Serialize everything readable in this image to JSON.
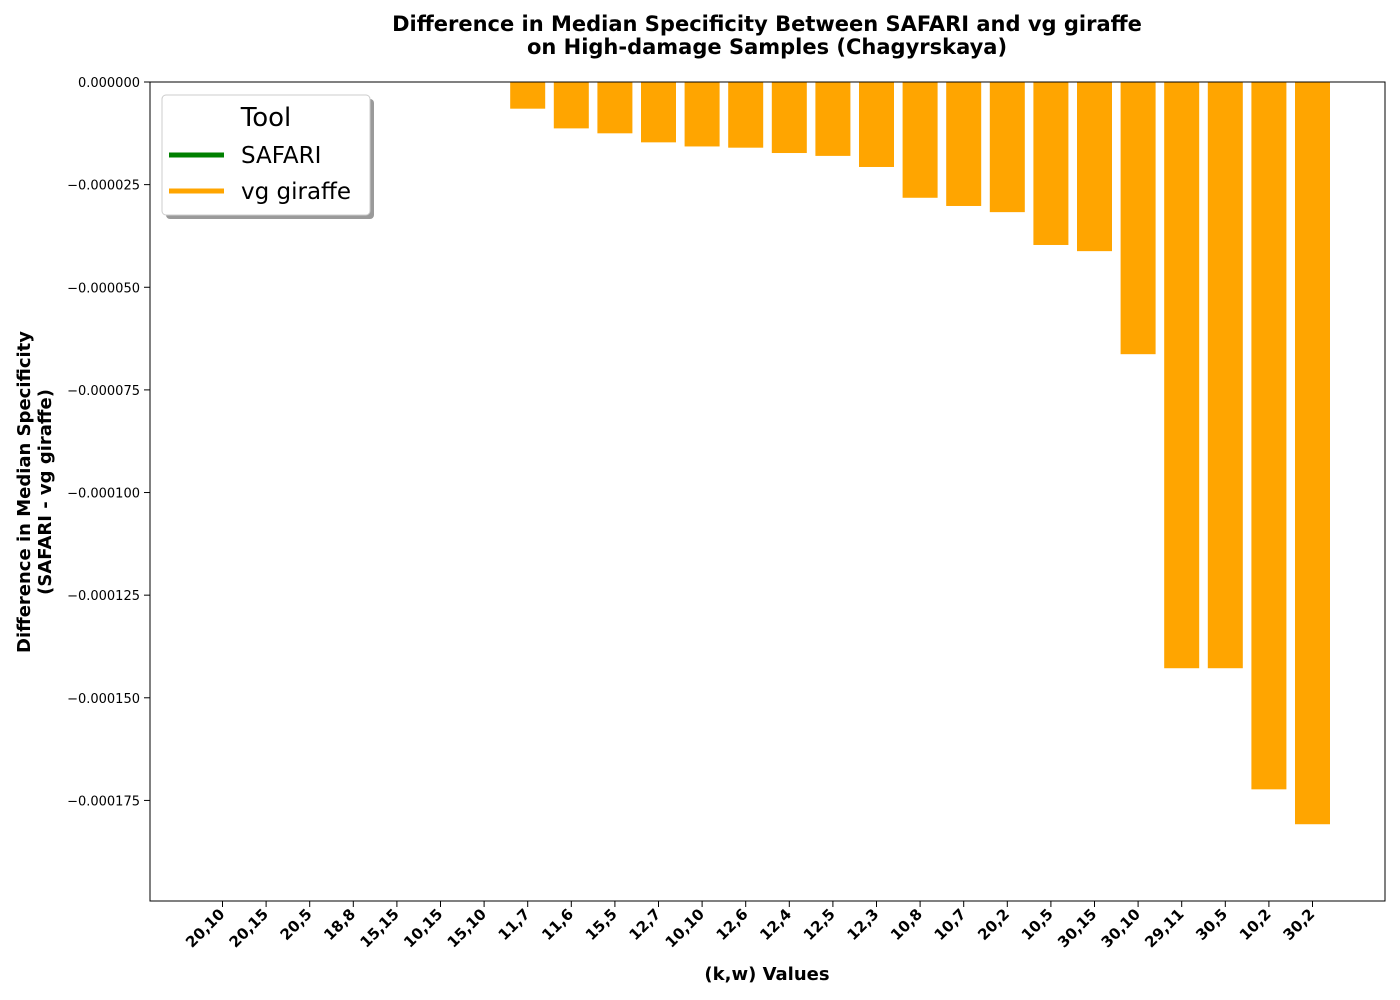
{
  "chart_data": {
    "type": "bar",
    "title": "Difference in Median Specificity Between SAFARI and vg giraffe",
    "subtitle": "on High-damage Samples (Chagyrskaya)",
    "xlabel": "(k,w) Values",
    "ylabel": "Difference in Median Specificity",
    "ylabel_sub": "(SAFARI - vg giraffe)",
    "categories": [
      "20,10",
      "20,15",
      "20,5",
      "18,8",
      "15,15",
      "10,15",
      "15,10",
      "11,7",
      "11,6",
      "15,5",
      "12,7",
      "10,10",
      "12,6",
      "12,4",
      "12,5",
      "12,3",
      "10,8",
      "10,7",
      "20,2",
      "10,5",
      "30,15",
      "30,10",
      "29,11",
      "30,5",
      "10,2",
      "30,2"
    ],
    "values": [
      0,
      0,
      0,
      0,
      0,
      0,
      0,
      -6.5e-06,
      -1.13e-05,
      -1.25e-05,
      -1.47e-05,
      -1.57e-05,
      -1.6e-05,
      -1.73e-05,
      -1.8e-05,
      -2.07e-05,
      -2.82e-05,
      -3.02e-05,
      -3.17e-05,
      -3.97e-05,
      -4.12e-05,
      -6.63e-05,
      -0.0001428,
      -0.0001428,
      -0.0001723,
      -0.0001808
    ],
    "bar_color": "#ffa500",
    "ylim": [
      -0.0001995,
      0
    ],
    "yticks": [
      0,
      -2.5e-05,
      -5e-05,
      -7.5e-05,
      -0.0001,
      -0.000125,
      -0.00015,
      -0.000175
    ],
    "ytick_labels": [
      "0.000000",
      "−0.000025",
      "−0.000050",
      "−0.000075",
      "−0.000100",
      "−0.000125",
      "−0.000150",
      "−0.000175"
    ],
    "grid": false,
    "legend": {
      "title": "Tool",
      "placement": "top-left",
      "entries": [
        {
          "label": "SAFARI",
          "color": "#008000"
        },
        {
          "label": "vg giraffe",
          "color": "#ffa500"
        }
      ]
    }
  }
}
